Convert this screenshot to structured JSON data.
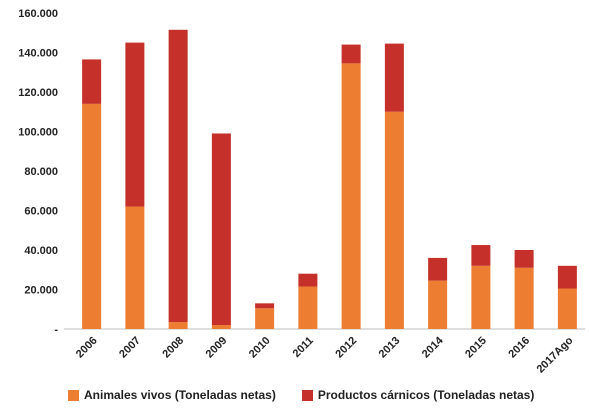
{
  "chart_data": {
    "type": "bar",
    "stacked": true,
    "categories": [
      "2006",
      "2007",
      "2008",
      "2009",
      "2010",
      "2011",
      "2012",
      "2013",
      "2014",
      "2015",
      "2016",
      "2017Ago"
    ],
    "series": [
      {
        "name": "Animales vivos (Toneladas netas)",
        "color": "#ED7D31",
        "values": [
          114000,
          62000,
          3500,
          2000,
          10500,
          21500,
          134500,
          110000,
          24500,
          32000,
          31000,
          20500
        ]
      },
      {
        "name": "Productos cárnicos (Toneladas netas)",
        "color": "#C5312A",
        "values": [
          22500,
          83000,
          148000,
          97000,
          2500,
          6500,
          9500,
          34500,
          11500,
          10500,
          9000,
          11500
        ]
      }
    ],
    "ylim": [
      0,
      160000
    ],
    "yticks": [
      0,
      20000,
      40000,
      60000,
      80000,
      100000,
      120000,
      140000,
      160000
    ],
    "ytick_labels": [
      "-",
      "20.000",
      "40.000",
      "60.000",
      "80.000",
      "100.000",
      "120.000",
      "140.000",
      "160.000"
    ],
    "grid": false,
    "legend_position": "bottom"
  }
}
